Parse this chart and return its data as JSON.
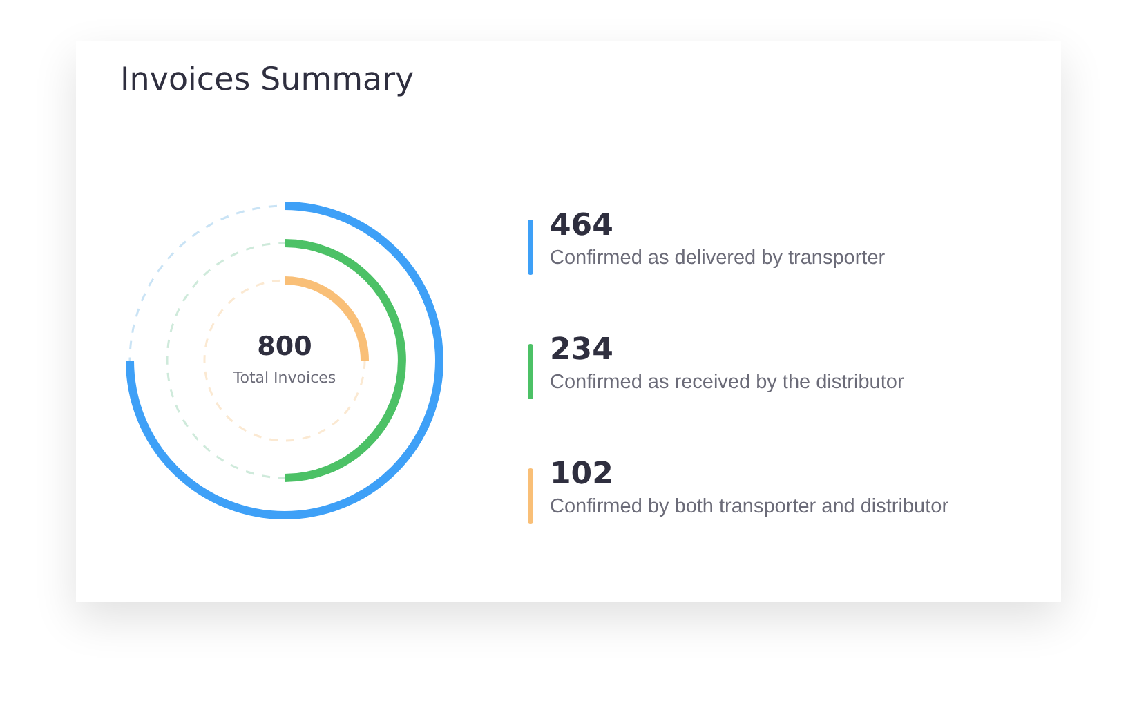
{
  "chart_data": {
    "type": "other",
    "title": "Invoices Summary",
    "categories": [
      "Confirmed as delivered by transporter",
      "Confirmed as received by the distributor",
      "Confirmed by both transporter and distributor"
    ],
    "values": [
      464,
      234,
      102
    ],
    "colors": [
      "#3ea0f7",
      "#4cc166",
      "#f9bf77"
    ],
    "data_labels": true,
    "annotations": [
      "800",
      "Total Invoices"
    ]
  }
}
